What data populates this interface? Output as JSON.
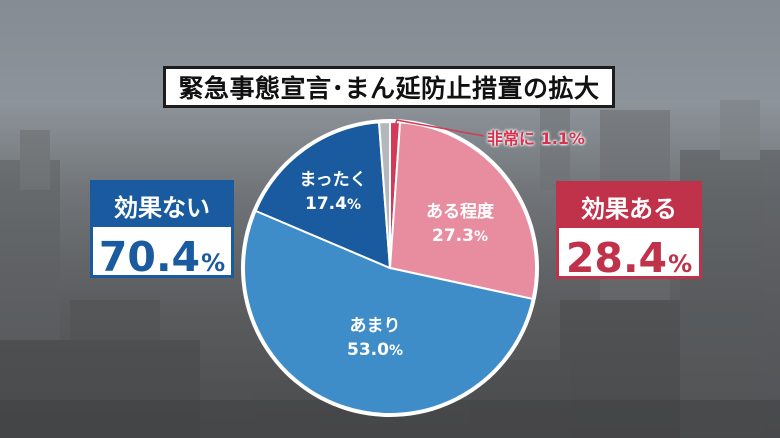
{
  "title": "緊急事態宣言･まん延防止措置の拡大",
  "summary": {
    "negative": {
      "label": "効果ない",
      "value": "70.4",
      "unit": "%"
    },
    "positive": {
      "label": "効果ある",
      "value": "28.4",
      "unit": "%"
    }
  },
  "colors": {
    "hijou": "#d43a55",
    "aru_teido": "#e88c9f",
    "amari": "#3e8cc8",
    "mattaku": "#1a5a9e",
    "other": "#b5b8ba",
    "positive_accent": "#c0314a",
    "negative_accent": "#1a5a9e"
  },
  "chart_data": {
    "type": "pie",
    "title": "緊急事態宣言･まん延防止措置の拡大",
    "slices": [
      {
        "label": "非常に",
        "value": 1.1
      },
      {
        "label": "ある程度",
        "value": 27.3
      },
      {
        "label": "あまり",
        "value": 53.0
      },
      {
        "label": "まったく",
        "value": 17.4
      },
      {
        "label": "",
        "value": 1.2
      }
    ],
    "slice_texts": {
      "hijou": "非常に 1.1%",
      "teido_label": "ある程度",
      "teido_value": "27.3",
      "amari_label": "あまり",
      "amari_value": "53.0",
      "mattaku_label": "まったく",
      "mattaku_value": "17.4",
      "unit": "%"
    },
    "start": "12 o'clock",
    "direction": "clockwise"
  }
}
